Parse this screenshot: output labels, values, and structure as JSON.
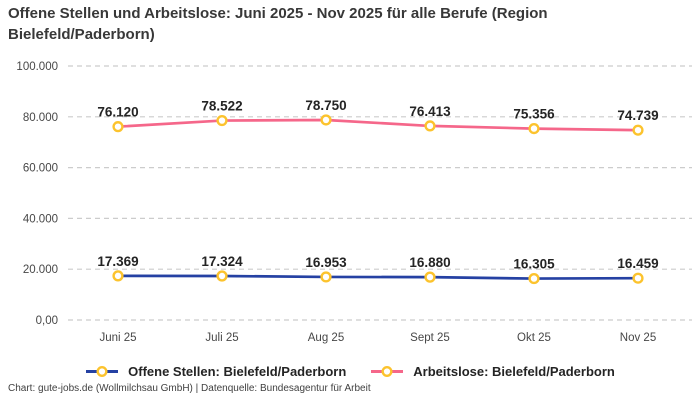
{
  "title": "Offene Stellen und Arbeitslose: Juni 2025 - Nov 2025 für alle Berufe (Region Bielefeld/Paderborn)",
  "chart_data": {
    "type": "line",
    "categories": [
      "Juni 25",
      "Juli 25",
      "Aug 25",
      "Sept 25",
      "Okt 25",
      "Nov 25"
    ],
    "series": [
      {
        "name": "Offene Stellen: Bielefeld/Paderborn",
        "color": "#2541a3",
        "values": [
          17369,
          17324,
          16953,
          16880,
          16305,
          16459
        ],
        "labels": [
          "17.369",
          "17.324",
          "16.953",
          "16.880",
          "16.305",
          "16.459"
        ]
      },
      {
        "name": "Arbeitslose: Bielefeld/Paderborn",
        "color": "#f5678a",
        "values": [
          76120,
          78522,
          78750,
          76413,
          75356,
          74739
        ],
        "labels": [
          "76.120",
          "78.522",
          "78.750",
          "76.413",
          "75.356",
          "74.739"
        ]
      }
    ],
    "ylim": [
      0,
      100000
    ],
    "yticks": {
      "values": [
        0,
        20000,
        40000,
        60000,
        80000,
        100000
      ],
      "labels": [
        "0,00",
        "20.000",
        "40.000",
        "60.000",
        "80.000",
        "100.000"
      ]
    },
    "grid": "horizontal dashed",
    "grid_color": "#cccccc",
    "legend_position": "bottom",
    "marker": {
      "fill": "#ffffff",
      "ring": "#fcc32d"
    }
  },
  "legend": {
    "items": [
      {
        "label": "Offene Stellen: Bielefeld/Paderborn",
        "color": "#2541a3"
      },
      {
        "label": "Arbeitslose: Bielefeld/Paderborn",
        "color": "#f5678a"
      }
    ]
  },
  "footer": "Chart: gute-jobs.de (Wollmilchsau GmbH) | Datenquelle: Bundesagentur für Arbeit"
}
